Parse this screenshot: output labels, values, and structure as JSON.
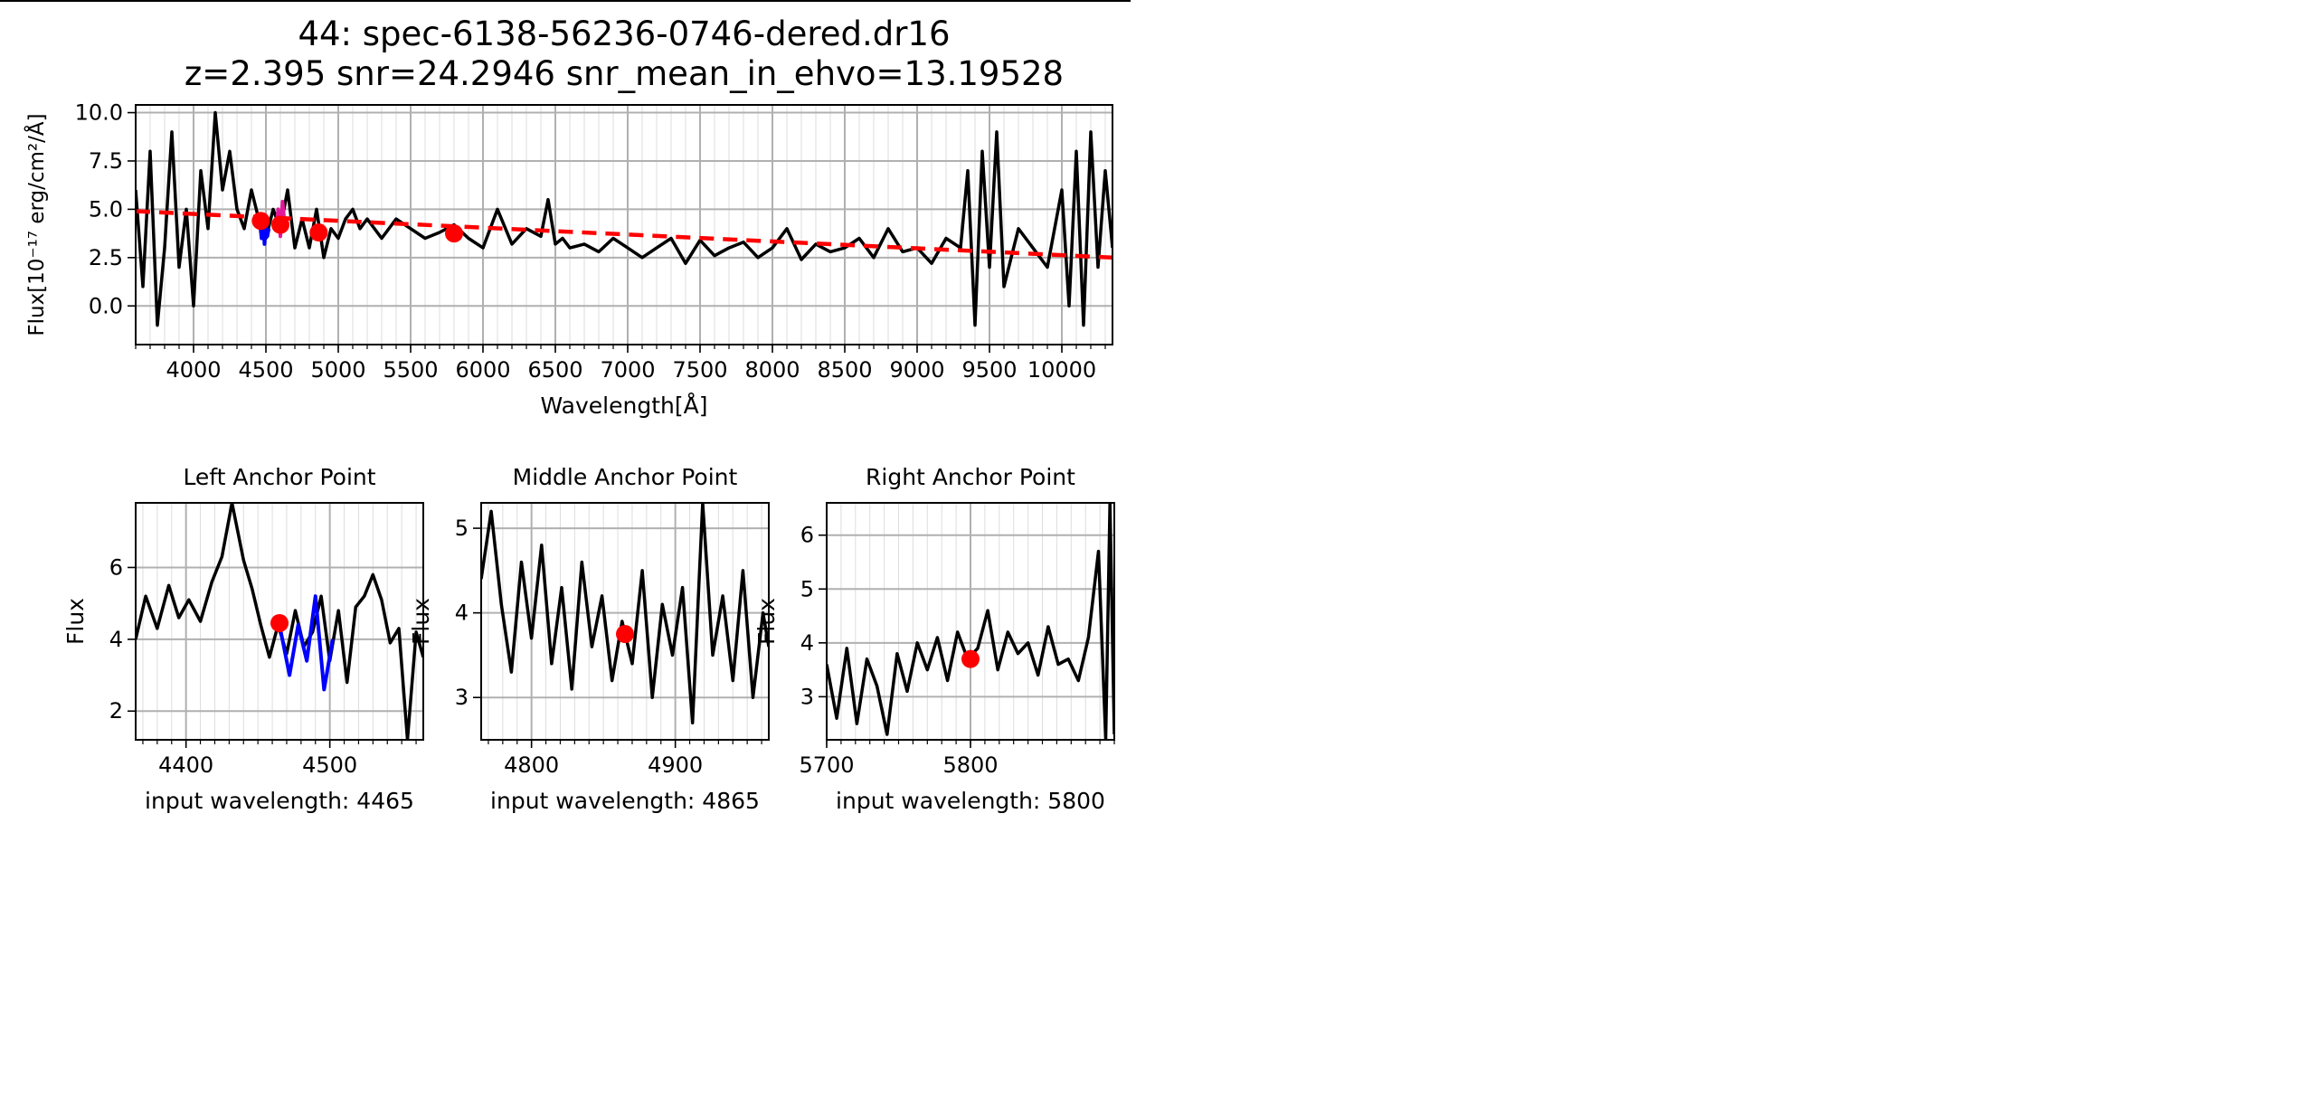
{
  "figure": {
    "title_line1": "44: spec-6138-56236-0746-dered.dr16",
    "title_line2": "z=2.395 snr=24.2946 snr_mean_in_ehvo=13.19528"
  },
  "colors": {
    "spectrum": "#000000",
    "fit": "#ff0000",
    "anchor": "#ff0000",
    "left_region": "#0000ff",
    "middle_region": "#e0199b",
    "grid": "#b0b0b0"
  },
  "chart_data": [
    {
      "type": "line",
      "id": "main",
      "xlabel": "Wavelength[Å]",
      "ylabel": "Flux[10⁻¹⁷ erg/cm²/Å]",
      "xlim": [
        3600,
        10350
      ],
      "ylim": [
        -2,
        10.4
      ],
      "xticks": [
        4000,
        4500,
        5000,
        5500,
        6000,
        6500,
        7000,
        7500,
        8000,
        8500,
        9000,
        9500,
        10000
      ],
      "yticks": [
        0.0,
        2.5,
        5.0,
        7.5,
        10.0
      ],
      "ytick_labels": [
        "0.0",
        "2.5",
        "5.0",
        "7.5",
        "10.0"
      ],
      "grid": true,
      "series": [
        {
          "kind": "spectrum",
          "x": [
            3600,
            3650,
            3700,
            3750,
            3800,
            3850,
            3900,
            3950,
            4000,
            4050,
            4100,
            4150,
            4200,
            4250,
            4300,
            4350,
            4400,
            4450,
            4500,
            4550,
            4600,
            4650,
            4700,
            4750,
            4800,
            4850,
            4900,
            4950,
            5000,
            5050,
            5100,
            5150,
            5200,
            5300,
            5400,
            5500,
            5600,
            5700,
            5800,
            5900,
            6000,
            6100,
            6200,
            6300,
            6400,
            6450,
            6500,
            6550,
            6600,
            6700,
            6800,
            6900,
            7000,
            7100,
            7200,
            7300,
            7400,
            7500,
            7600,
            7700,
            7800,
            7900,
            8000,
            8100,
            8200,
            8300,
            8400,
            8500,
            8600,
            8700,
            8800,
            8900,
            9000,
            9100,
            9200,
            9300,
            9350,
            9400,
            9450,
            9500,
            9550,
            9600,
            9700,
            9800,
            9900,
            10000,
            10050,
            10100,
            10150,
            10200,
            10250,
            10300,
            10350
          ],
          "y": [
            6,
            1,
            8,
            -1,
            3,
            9,
            2,
            5,
            0,
            7,
            4,
            10,
            6,
            8,
            5,
            4,
            6,
            4.5,
            3.5,
            5,
            4,
            6,
            3,
            4.5,
            3,
            5,
            2.5,
            4,
            3.5,
            4.5,
            5,
            4,
            4.5,
            3.5,
            4.5,
            4,
            3.5,
            3.8,
            4.2,
            3.5,
            3,
            5,
            3.2,
            4,
            3.6,
            5.5,
            3.2,
            3.5,
            3,
            3.2,
            2.8,
            3.5,
            3,
            2.5,
            3,
            3.5,
            2.2,
            3.4,
            2.6,
            3,
            3.3,
            2.5,
            3,
            4,
            2.4,
            3.2,
            2.8,
            3,
            3.5,
            2.5,
            4,
            2.8,
            3,
            2.2,
            3.5,
            3,
            7,
            -1,
            8,
            2,
            9,
            1,
            4,
            3,
            2,
            6,
            0,
            8,
            -1,
            9,
            2,
            7,
            3
          ]
        },
        {
          "kind": "region",
          "name": "left_region",
          "x": [
            4460,
            4470,
            4480,
            4490,
            4500,
            4510,
            4520
          ],
          "y": [
            4.2,
            3.5,
            4.6,
            3.2,
            4.4,
            3.6,
            4.0
          ]
        },
        {
          "kind": "region",
          "name": "middle_region",
          "x": [
            4570,
            4585,
            4600,
            4615,
            4630
          ],
          "y": [
            4.0,
            5.0,
            3.6,
            5.4,
            4.2
          ]
        },
        {
          "kind": "fit",
          "x": [
            3600,
            10350
          ],
          "y": [
            4.9,
            2.5
          ]
        }
      ],
      "anchors": {
        "x": [
          4465,
          4600,
          4865,
          5800
        ],
        "y": [
          4.4,
          4.2,
          3.8,
          3.75
        ]
      }
    },
    {
      "type": "line",
      "id": "left",
      "title": "Left Anchor Point",
      "xlabel": "input wavelength: 4465",
      "ylabel": "Flux",
      "xlim": [
        4365,
        4565
      ],
      "ylim": [
        1.2,
        7.8
      ],
      "xticks": [
        4400,
        4500
      ],
      "yticks": [
        2,
        4,
        6
      ],
      "grid": true,
      "series": [
        {
          "kind": "spectrum",
          "x": [
            4365,
            4372,
            4380,
            4388,
            4395,
            4402,
            4410,
            4418,
            4425,
            4432,
            4440,
            4446,
            4452,
            4458,
            4464,
            4470,
            4476,
            4482,
            4488,
            4494,
            4500,
            4506,
            4512,
            4518,
            4524,
            4530,
            4536,
            4542,
            4548,
            4554,
            4560,
            4565
          ],
          "y": [
            4,
            5.2,
            4.3,
            5.5,
            4.6,
            5.1,
            4.5,
            5.6,
            6.3,
            7.8,
            6.2,
            5.4,
            4.4,
            3.5,
            4.4,
            3.6,
            4.8,
            3.8,
            4.2,
            5.2,
            3.4,
            4.8,
            2.8,
            4.9,
            5.2,
            5.8,
            5.1,
            3.9,
            4.3,
            1.2,
            4.2,
            3.5
          ]
        },
        {
          "kind": "region",
          "name": "left_region",
          "x": [
            4466,
            4472,
            4478,
            4484,
            4490,
            4496,
            4502
          ],
          "y": [
            4.2,
            3.0,
            4.4,
            3.4,
            5.2,
            2.6,
            4.0
          ]
        }
      ],
      "anchors": {
        "x": [
          4465
        ],
        "y": [
          4.45
        ]
      }
    },
    {
      "type": "line",
      "id": "middle",
      "title": "Middle Anchor Point",
      "xlabel": "input wavelength: 4865",
      "ylabel": "Flux",
      "xlim": [
        4765,
        4965
      ],
      "ylim": [
        2.5,
        5.3
      ],
      "xticks": [
        4800,
        4900
      ],
      "yticks": [
        3,
        4,
        5
      ],
      "grid": true,
      "series": [
        {
          "kind": "spectrum",
          "x": [
            4765,
            4772,
            4779,
            4786,
            4793,
            4800,
            4807,
            4814,
            4821,
            4828,
            4835,
            4842,
            4849,
            4856,
            4863,
            4870,
            4877,
            4884,
            4891,
            4898,
            4905,
            4912,
            4919,
            4926,
            4933,
            4940,
            4947,
            4954,
            4961,
            4965
          ],
          "y": [
            4.4,
            5.2,
            4.1,
            3.3,
            4.6,
            3.7,
            4.8,
            3.4,
            4.3,
            3.1,
            4.6,
            3.6,
            4.2,
            3.2,
            3.9,
            3.4,
            4.5,
            3.0,
            4.1,
            3.5,
            4.3,
            2.7,
            5.3,
            3.5,
            4.2,
            3.2,
            4.5,
            3.0,
            4.0,
            3.6
          ]
        }
      ],
      "anchors": {
        "x": [
          4865
        ],
        "y": [
          3.75
        ]
      }
    },
    {
      "type": "line",
      "id": "right",
      "title": "Right Anchor Point",
      "xlabel": "input wavelength: 5800",
      "ylabel": "Flux",
      "xlim": [
        5700,
        5900
      ],
      "ylim": [
        2.2,
        6.6
      ],
      "xticks": [
        5700,
        5800
      ],
      "yticks": [
        3,
        4,
        5,
        6
      ],
      "grid": true,
      "series": [
        {
          "kind": "spectrum",
          "x": [
            5700,
            5707,
            5714,
            5721,
            5728,
            5735,
            5742,
            5749,
            5756,
            5763,
            5770,
            5777,
            5784,
            5791,
            5798,
            5805,
            5812,
            5819,
            5826,
            5833,
            5840,
            5847,
            5854,
            5861,
            5868,
            5875,
            5882,
            5889,
            5894,
            5897,
            5900
          ],
          "y": [
            3.6,
            2.6,
            3.9,
            2.5,
            3.7,
            3.2,
            2.3,
            3.8,
            3.1,
            4.0,
            3.5,
            4.1,
            3.3,
            4.2,
            3.7,
            3.9,
            4.6,
            3.5,
            4.2,
            3.8,
            4.0,
            3.4,
            4.3,
            3.6,
            3.7,
            3.3,
            4.1,
            5.7,
            2.2,
            6.6,
            2.3
          ]
        }
      ],
      "anchors": {
        "x": [
          5800
        ],
        "y": [
          3.7
        ]
      }
    }
  ]
}
